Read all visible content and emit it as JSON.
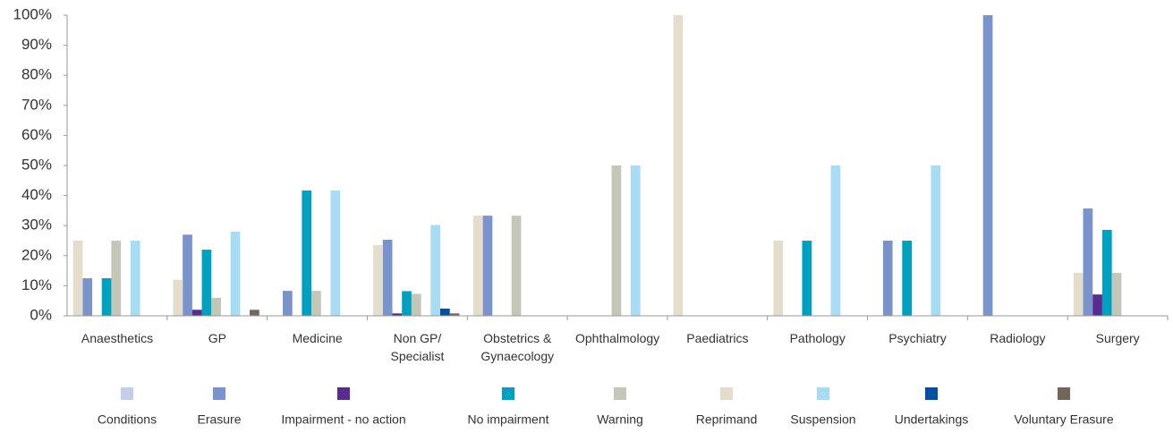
{
  "chart_data": {
    "type": "bar",
    "categories": [
      "Anaesthetics",
      "GP",
      "Medicine",
      "Non GP/ Specialist",
      "Obstetrics & Gynaecology",
      "Ophthalmology",
      "Paediatrics",
      "Pathology",
      "Psychiatry",
      "Radiology",
      "Surgery"
    ],
    "series": [
      {
        "name": "Conditions",
        "color": "#c5cde8",
        "values": [
          0,
          0,
          0,
          0,
          0,
          0,
          0,
          0,
          0,
          0,
          0
        ]
      },
      {
        "name": "Erasure",
        "color": "#7b93cc",
        "values": [
          12.5,
          27,
          8.3,
          25.3,
          33.3,
          0,
          0,
          0,
          25,
          100,
          35.7
        ]
      },
      {
        "name": "Impairment - no action",
        "color": "#5b2c8f",
        "values": [
          0,
          2,
          0,
          0.8,
          0,
          0,
          0,
          0,
          0,
          0,
          7.1
        ]
      },
      {
        "name": "No impairment",
        "color": "#00a0c0",
        "values": [
          12.5,
          22,
          41.7,
          8.2,
          0,
          0,
          0,
          25,
          25,
          0,
          28.6
        ]
      },
      {
        "name": "Warning",
        "color": "#c4c7b8",
        "values": [
          25,
          6,
          8.3,
          7.3,
          33.3,
          50,
          0,
          0,
          0,
          0,
          14.3
        ]
      },
      {
        "name": "Reprimand",
        "color": "#e4ddcb",
        "values": [
          25,
          12,
          0,
          23.5,
          33.3,
          0,
          100,
          25,
          0,
          0,
          14.3
        ]
      },
      {
        "name": "Suspension",
        "color": "#a8dcf5",
        "values": [
          25,
          28,
          41.7,
          30.2,
          0,
          50,
          0,
          50,
          50,
          0,
          0
        ]
      },
      {
        "name": "Undertakings",
        "color": "#0050a0",
        "values": [
          0,
          0,
          0,
          2.4,
          0,
          0,
          0,
          0,
          0,
          0,
          0
        ]
      },
      {
        "name": "Voluntary Erasure",
        "color": "#73675c",
        "values": [
          0,
          2,
          0,
          0.8,
          0,
          0,
          0,
          0,
          0,
          0,
          0
        ]
      }
    ],
    "ylim": [
      0,
      100
    ],
    "yticks": [
      {
        "value": 0,
        "label": "0%"
      },
      {
        "value": 10,
        "label": "10%"
      },
      {
        "value": 20,
        "label": "20%"
      },
      {
        "value": 30,
        "label": "30%"
      },
      {
        "value": 40,
        "label": "40%"
      },
      {
        "value": 50,
        "label": "50%"
      },
      {
        "value": 60,
        "label": "60%"
      },
      {
        "value": 70,
        "label": "70%"
      },
      {
        "value": 80,
        "label": "80%"
      },
      {
        "value": 90,
        "label": "90%"
      },
      {
        "value": 100,
        "label": "100%"
      }
    ],
    "legend": "bottom"
  }
}
